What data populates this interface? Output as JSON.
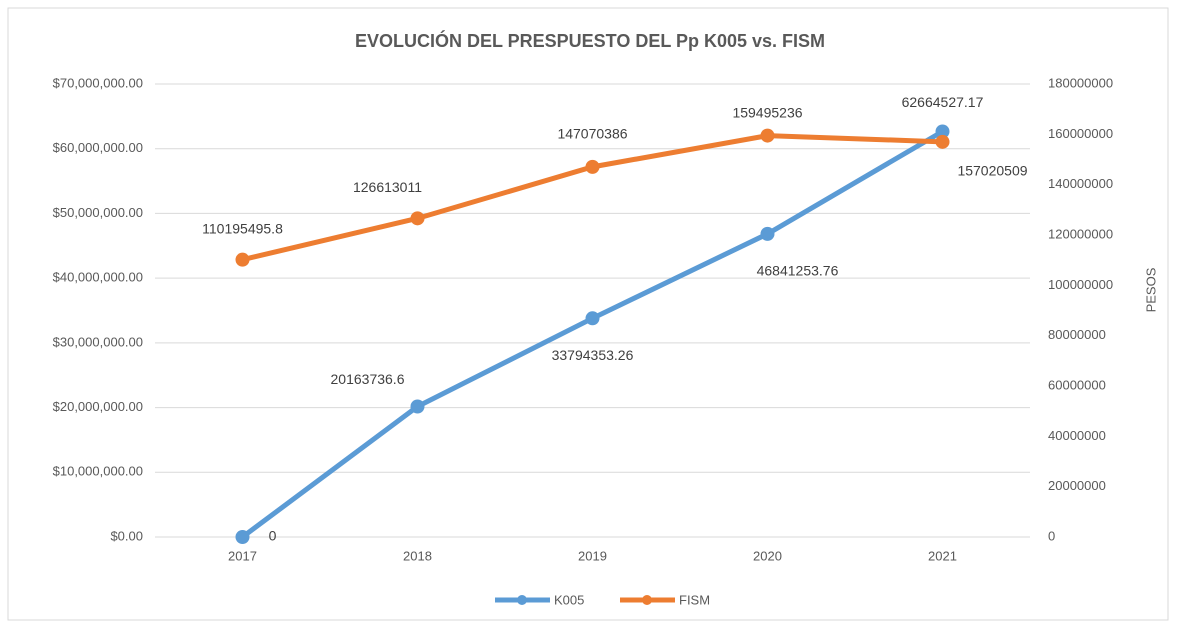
{
  "chart_data": {
    "type": "line",
    "title": "EVOLUCIÓN DEL PRESPUESTO DEL Pp K005 vs. FISM",
    "categories": [
      "2017",
      "2018",
      "2019",
      "2020",
      "2021"
    ],
    "series": [
      {
        "name": "K005",
        "color": "#5b9bd5",
        "values": [
          0,
          20163736.6,
          33794353.26,
          46841253.76,
          62664527.17
        ]
      },
      {
        "name": "FISM",
        "color": "#ed7d31",
        "axis": "y2",
        "values": [
          110195495.8,
          126613011,
          147070386,
          159495236,
          157020509
        ]
      }
    ],
    "ylim": [
      0,
      70000000
    ],
    "yticks": [
      {
        "value": 0,
        "label": "$0.00"
      },
      {
        "value": 10000000,
        "label": "$10,000,000.00"
      },
      {
        "value": 20000000,
        "label": "$20,000,000.00"
      },
      {
        "value": 30000000,
        "label": "$30,000,000.00"
      },
      {
        "value": 40000000,
        "label": "$40,000,000.00"
      },
      {
        "value": 50000000,
        "label": "$50,000,000.00"
      },
      {
        "value": 60000000,
        "label": "$60,000,000.00"
      },
      {
        "value": 70000000,
        "label": "$70,000,000.00"
      }
    ],
    "y2lim": [
      0,
      180000000
    ],
    "y2ticks": [
      0,
      20000000,
      40000000,
      60000000,
      80000000,
      100000000,
      120000000,
      140000000,
      160000000,
      180000000
    ],
    "y2label": "PESOS",
    "grid": true,
    "legend": "bottom"
  }
}
